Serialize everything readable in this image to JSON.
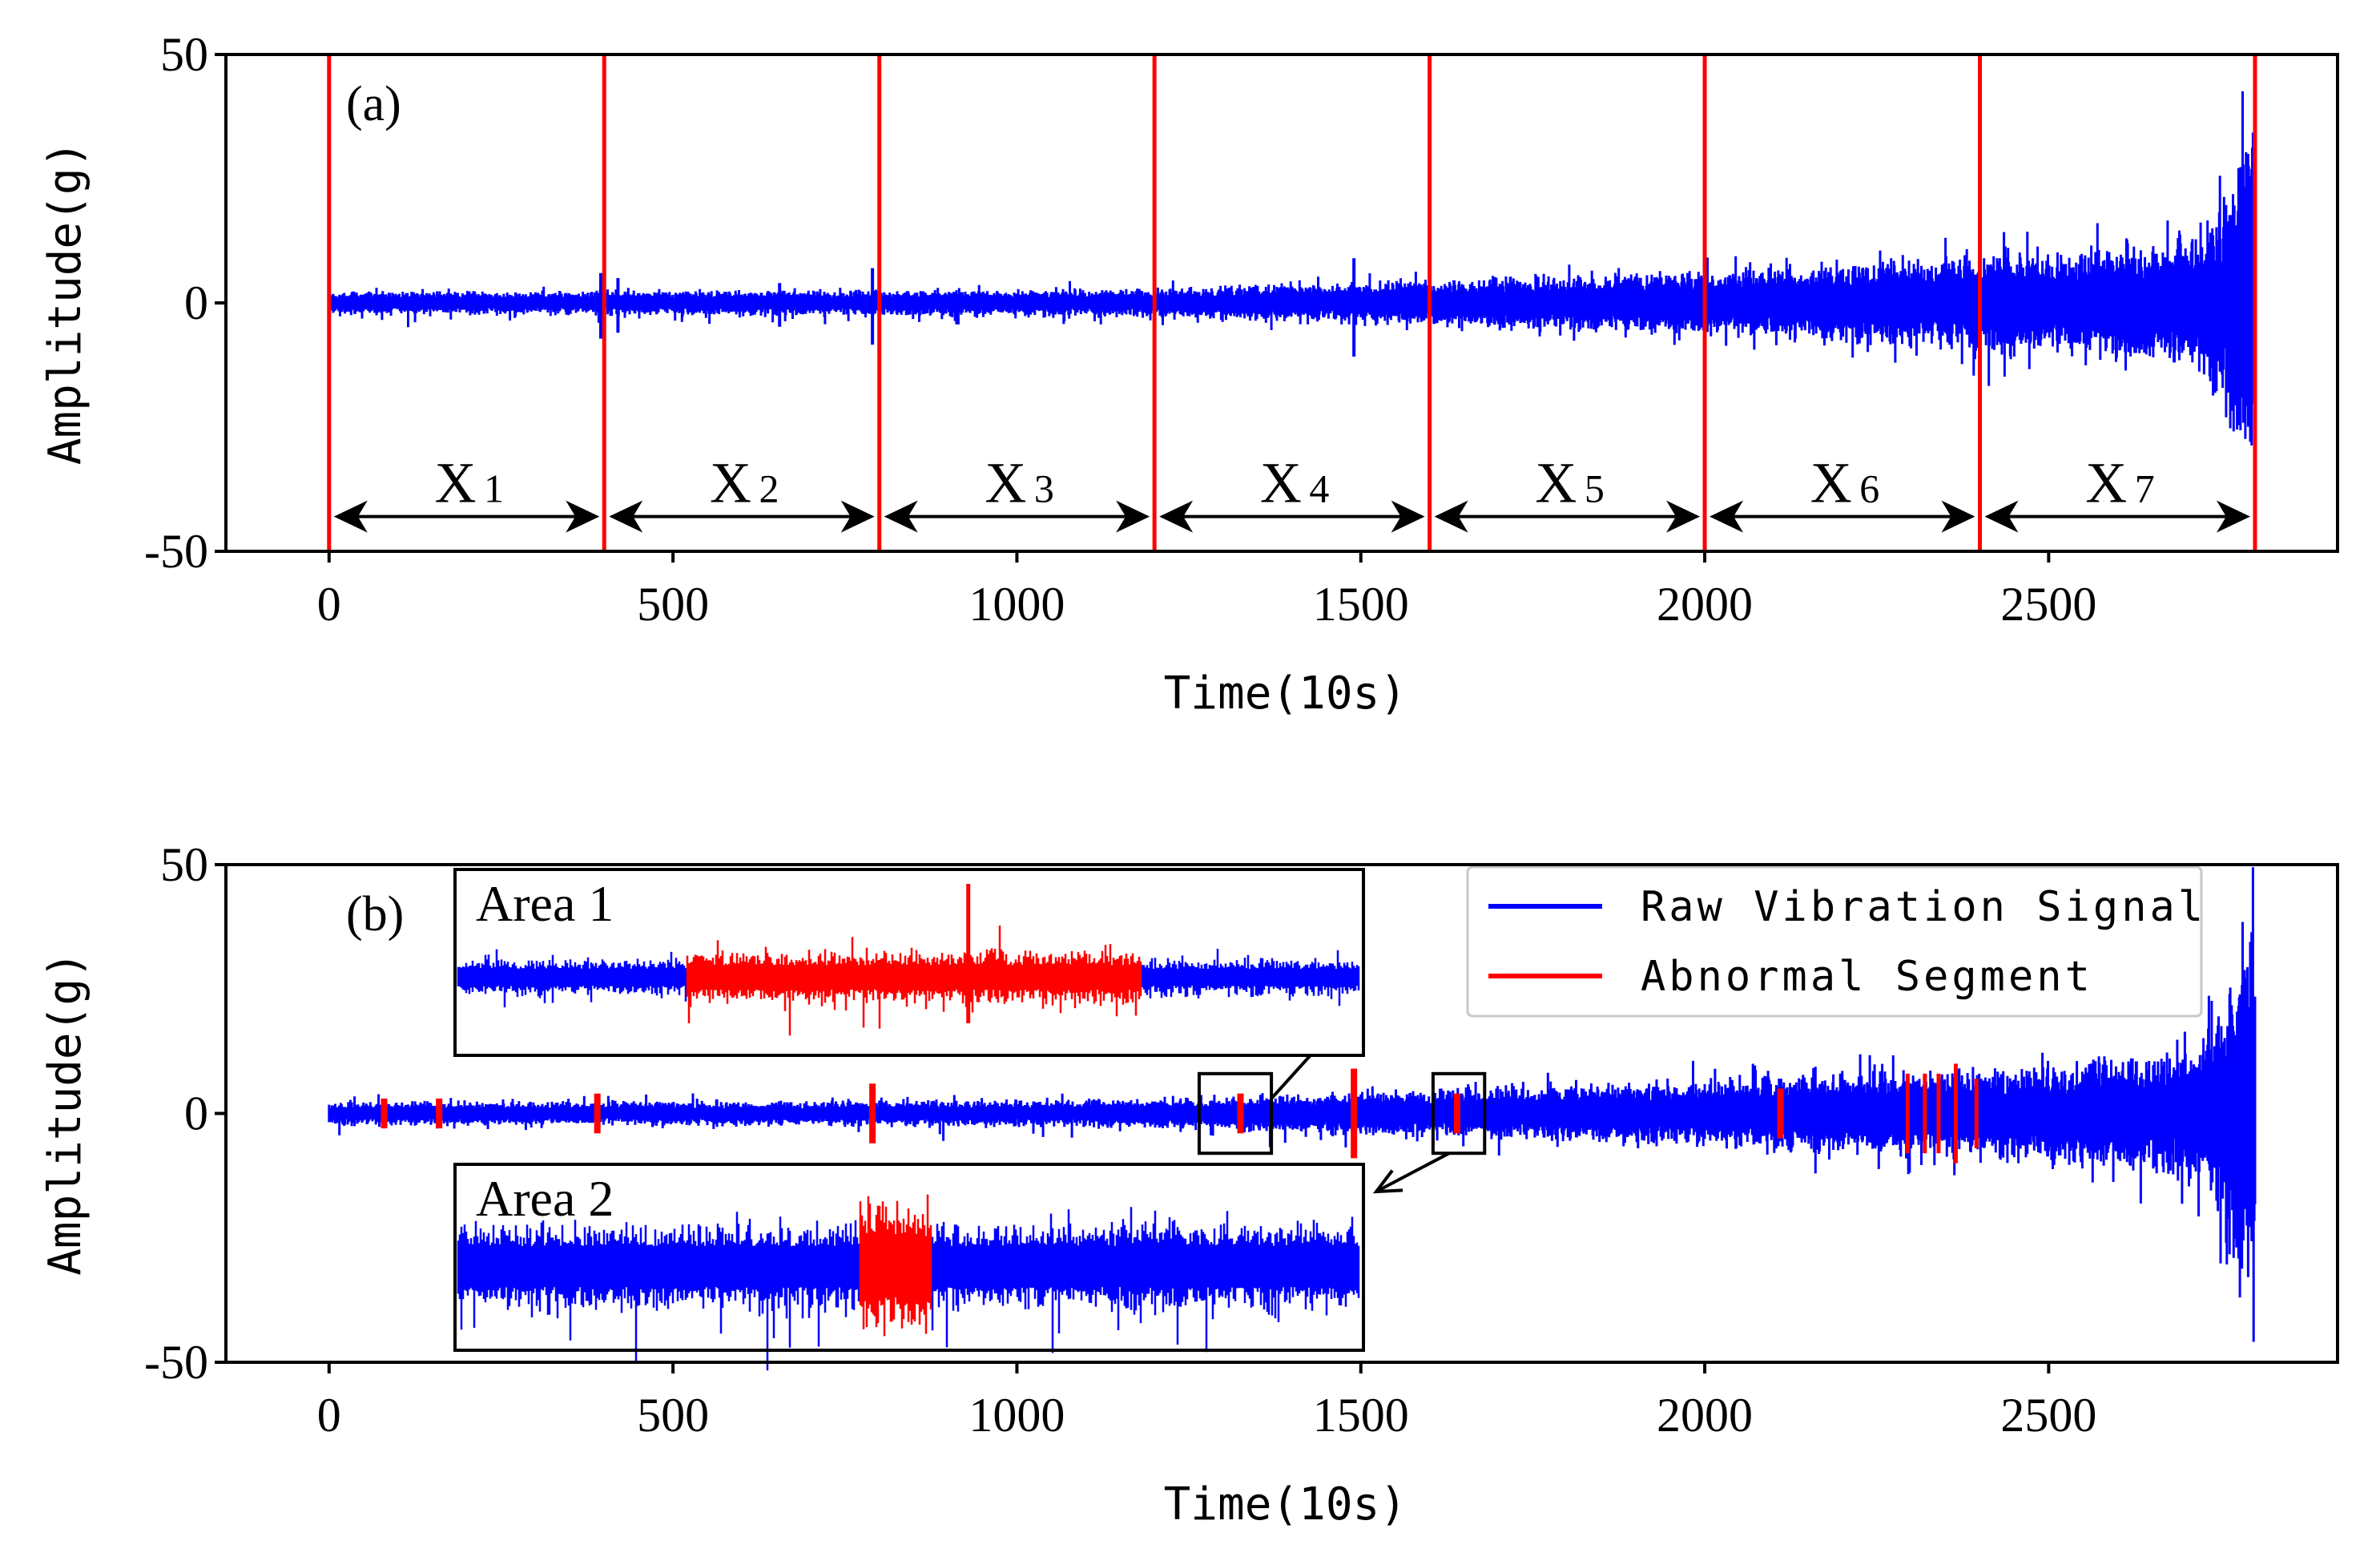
{
  "chart_data": [
    {
      "panel": "(a)",
      "type": "line",
      "xlabel": "Time(10s)",
      "ylabel": "Amplitude(g)",
      "xlim": [
        -150,
        2920
      ],
      "ylim": [
        -50,
        50
      ],
      "xticks": [
        "0",
        "500",
        "1000",
        "1500",
        "2000",
        "2500"
      ],
      "xtick_values": [
        0,
        500,
        1000,
        1500,
        2000,
        2500
      ],
      "yticks": [
        "50",
        "0",
        "-50"
      ],
      "ytick_values": [
        50,
        0,
        -50
      ],
      "colors": {
        "signal": "#0000ff",
        "boundary": "#ff0000",
        "arrow": "#000000"
      },
      "boundaries": [
        0,
        400,
        800,
        1200,
        1600,
        2000,
        2400,
        2800
      ],
      "segments": [
        {
          "name": "X",
          "sub": "1",
          "start": 0,
          "end": 400
        },
        {
          "name": "X",
          "sub": "2",
          "start": 400,
          "end": 800
        },
        {
          "name": "X",
          "sub": "3",
          "start": 800,
          "end": 1200
        },
        {
          "name": "X",
          "sub": "4",
          "start": 1200,
          "end": 1600
        },
        {
          "name": "X",
          "sub": "5",
          "start": 1600,
          "end": 2000
        },
        {
          "name": "X",
          "sub": "6",
          "start": 2000,
          "end": 2400
        },
        {
          "name": "X",
          "sub": "7",
          "start": 2400,
          "end": 2800
        }
      ],
      "envelope": {
        "x": [
          0,
          400,
          800,
          1200,
          1400,
          1600,
          1800,
          2000,
          2200,
          2400,
          2600,
          2700,
          2750,
          2780,
          2800
        ],
        "amplitude": [
          2.5,
          2.5,
          2.8,
          3,
          4,
          5,
          6,
          7,
          8.5,
          10,
          12,
          14,
          20,
          35,
          45
        ]
      },
      "spikes": [
        {
          "x": 395,
          "amplitude": 6
        },
        {
          "x": 420,
          "amplitude": 5
        },
        {
          "x": 655,
          "amplitude": 4
        },
        {
          "x": 790,
          "amplitude": 7
        },
        {
          "x": 1490,
          "amplitude": 9
        }
      ]
    },
    {
      "panel": "(b)",
      "type": "line",
      "xlabel": "Time(10s)",
      "ylabel": "Amplitude(g)",
      "xlim": [
        -150,
        2920
      ],
      "ylim": [
        -50,
        50
      ],
      "xticks": [
        "0",
        "500",
        "1000",
        "1500",
        "2000",
        "2500"
      ],
      "xtick_values": [
        0,
        500,
        1000,
        1500,
        2000,
        2500
      ],
      "yticks": [
        "50",
        "0",
        "-50"
      ],
      "ytick_values": [
        50,
        0,
        -50
      ],
      "colors": {
        "signal": "#0000ff",
        "abnormal": "#ff0000",
        "frame": "#000000"
      },
      "legend": [
        {
          "label": "Raw Vibration Signal",
          "color": "#0000ff"
        },
        {
          "label": "Abnormal Segment",
          "color": "#ff0000"
        }
      ],
      "legend_position": "top-right",
      "abnormal_segments": [
        {
          "x": 80,
          "amplitude": 3
        },
        {
          "x": 160,
          "amplitude": 3
        },
        {
          "x": 390,
          "amplitude": 4
        },
        {
          "x": 790,
          "amplitude": 6
        },
        {
          "x": 1325,
          "amplitude": 4
        },
        {
          "x": 1490,
          "amplitude": 9
        },
        {
          "x": 1640,
          "amplitude": 4
        },
        {
          "x": 2110,
          "amplitude": 5
        },
        {
          "x": 2295,
          "amplitude": 8
        },
        {
          "x": 2320,
          "amplitude": 8
        },
        {
          "x": 2340,
          "amplitude": 8
        },
        {
          "x": 2365,
          "amplitude": 10
        },
        {
          "x": 2395,
          "amplitude": 7
        }
      ],
      "zoom_boxes": [
        {
          "x": [
            1265,
            1370
          ],
          "y": [
            -8,
            8
          ],
          "inset": "Area 1"
        },
        {
          "x": [
            1605,
            1680
          ],
          "y": [
            -8,
            8
          ],
          "inset": "Area 2"
        }
      ],
      "insets": [
        {
          "title": "Area 1",
          "abnormal_fraction": [
            0.255,
            0.755
          ]
        },
        {
          "title": "Area 2",
          "abnormal_fraction": [
            0.445,
            0.525
          ]
        }
      ]
    }
  ]
}
